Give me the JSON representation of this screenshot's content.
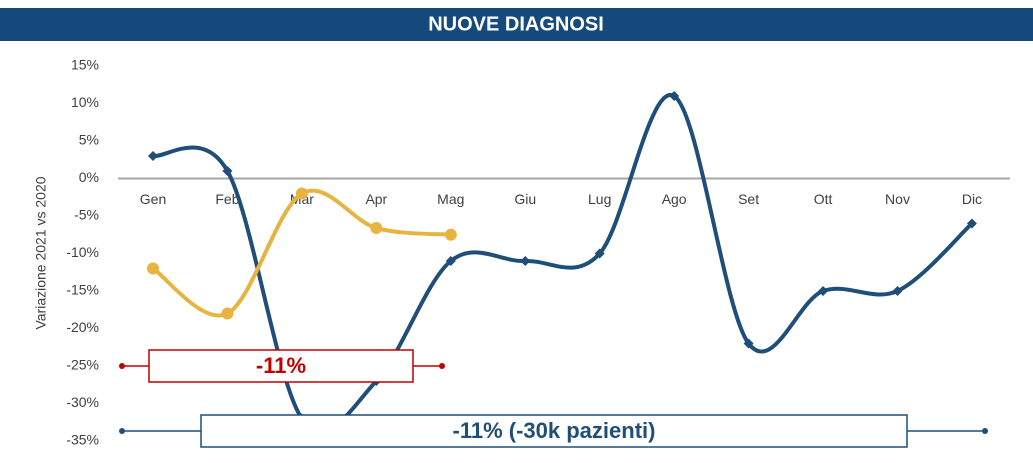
{
  "chart_data": {
    "type": "line",
    "title": "NUOVE DIAGNOSI",
    "y_label": "Variazione 2021 vs 2020",
    "categories": [
      "Gen",
      "Feb",
      "Mar",
      "Apr",
      "Mag",
      "Giu",
      "Lug",
      "Ago",
      "Set",
      "Ott",
      "Nov",
      "Dic"
    ],
    "series": [
      {
        "color": "#1f4e79",
        "marker": "diamond",
        "values": [
          3,
          1,
          -32,
          -27,
          -11,
          -11,
          -10,
          11,
          -22,
          -15,
          -15,
          -6
        ]
      },
      {
        "color": "#e8b440",
        "marker": "circle",
        "values": [
          -12,
          -18,
          -2,
          -6.6,
          -7.5,
          null,
          null,
          null,
          null,
          null,
          null,
          null
        ]
      }
    ],
    "ylim": [
      -35,
      15
    ],
    "yticks": [
      {
        "value": -35,
        "label": "-35%"
      },
      {
        "value": -30,
        "label": "-30%"
      },
      {
        "value": -25,
        "label": "-25%"
      },
      {
        "value": -20,
        "label": "-20%"
      },
      {
        "value": -15,
        "label": "-15%"
      },
      {
        "value": -10,
        "label": "-10%"
      },
      {
        "value": -5,
        "label": "-5%"
      },
      {
        "value": 0,
        "label": "0%"
      },
      {
        "value": 5,
        "label": "5%"
      },
      {
        "value": 10,
        "label": "10%"
      },
      {
        "value": 15,
        "label": "15%"
      }
    ],
    "annotations": [
      {
        "text": "-11%",
        "color": "#c00000"
      },
      {
        "text": "-11% (-30k pazienti)",
        "color": "#1f4e79"
      }
    ]
  }
}
